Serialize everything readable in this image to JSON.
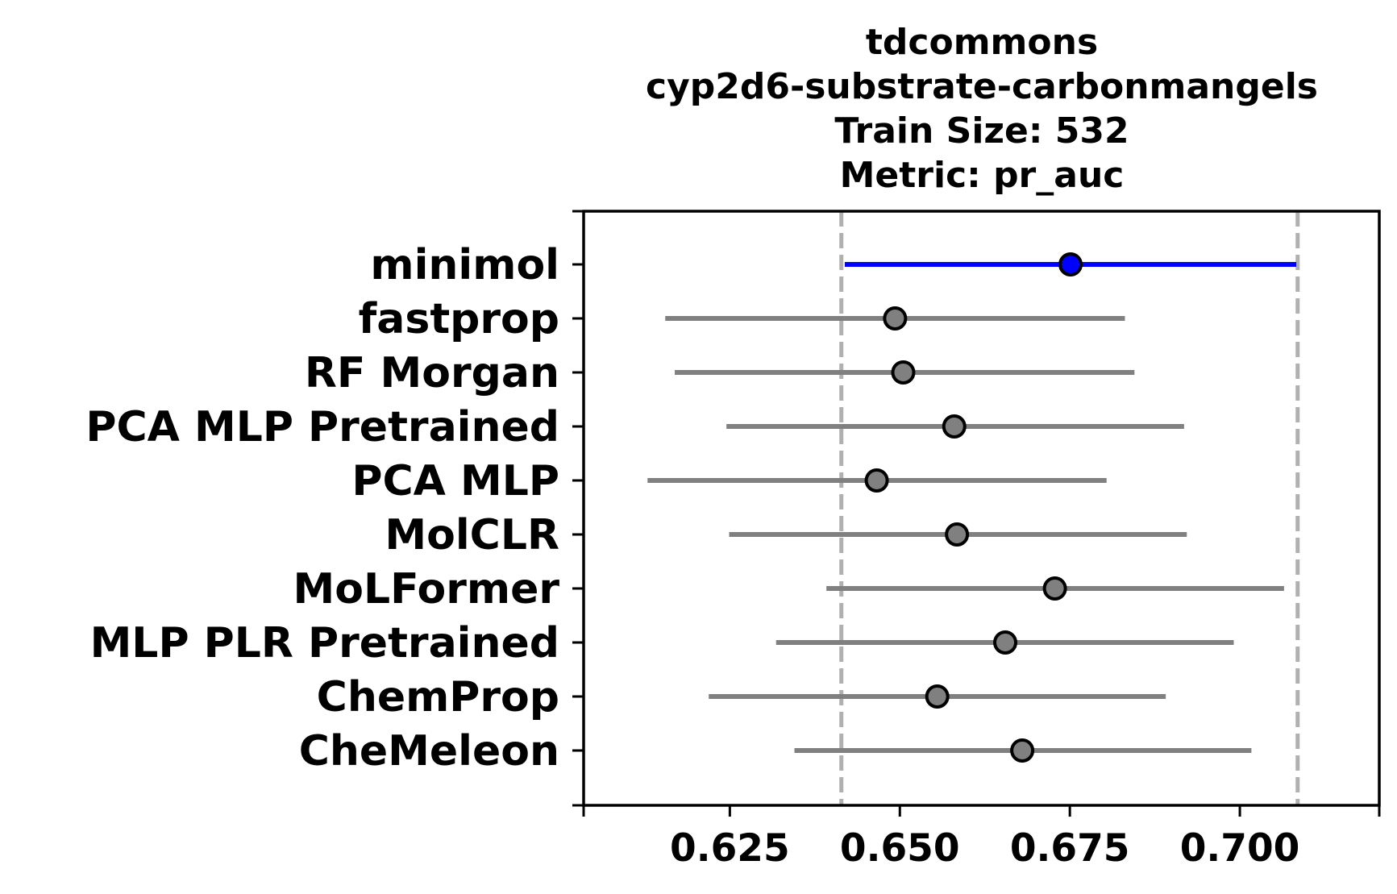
{
  "chart_data": {
    "type": "scatter",
    "title_lines": [
      "tdcommons",
      "cyp2d6-substrate-carbonmangels",
      "Train Size: 532",
      "Metric: pr_auc"
    ],
    "xlim": [
      0.6035,
      0.7205
    ],
    "xticks": [
      0.625,
      0.65,
      0.675,
      0.7
    ],
    "xtick_labels": [
      "0.625",
      "0.650",
      "0.675",
      "0.700"
    ],
    "reference_lines": [
      0.6414,
      0.7085
    ],
    "grid": false,
    "legend": "none",
    "categories": [
      "minimol",
      "fastprop",
      "RF Morgan",
      "PCA MLP Pretrained",
      "PCA MLP",
      "MolCLR",
      "MoLFormer",
      "MLP PLR Pretrained",
      "ChemProp",
      "CheMeleon"
    ],
    "series": [
      {
        "values": [
          {
            "label": "minimol",
            "mean": 0.6751,
            "low": 0.6419,
            "high": 0.7083,
            "highlight": true
          },
          {
            "label": "fastprop",
            "mean": 0.6493,
            "low": 0.6155,
            "high": 0.6831,
            "highlight": false
          },
          {
            "label": "RF Morgan",
            "mean": 0.6505,
            "low": 0.6169,
            "high": 0.6845,
            "highlight": false
          },
          {
            "label": "PCA MLP Pretrained",
            "mean": 0.658,
            "low": 0.6245,
            "high": 0.6918,
            "highlight": false
          },
          {
            "label": "PCA MLP",
            "mean": 0.6466,
            "low": 0.6129,
            "high": 0.6804,
            "highlight": false
          },
          {
            "label": "MolCLR",
            "mean": 0.6584,
            "low": 0.6249,
            "high": 0.6922,
            "highlight": false
          },
          {
            "label": "MoLFormer",
            "mean": 0.6728,
            "low": 0.6392,
            "high": 0.7065,
            "highlight": false
          },
          {
            "label": "MLP PLR Pretrained",
            "mean": 0.6655,
            "low": 0.6318,
            "high": 0.6991,
            "highlight": false
          },
          {
            "label": "ChemProp",
            "mean": 0.6555,
            "low": 0.6219,
            "high": 0.6891,
            "highlight": false
          },
          {
            "label": "CheMeleon",
            "mean": 0.668,
            "low": 0.6345,
            "high": 0.7017,
            "highlight": false
          }
        ]
      }
    ],
    "colors": {
      "highlight_line": "#0000ff",
      "highlight_marker": "#0000ff",
      "default_line": "#808080",
      "default_marker": "#808080",
      "marker_edge": "#000000",
      "reference_line": "#b0b0b0",
      "axes": "#000000"
    }
  }
}
